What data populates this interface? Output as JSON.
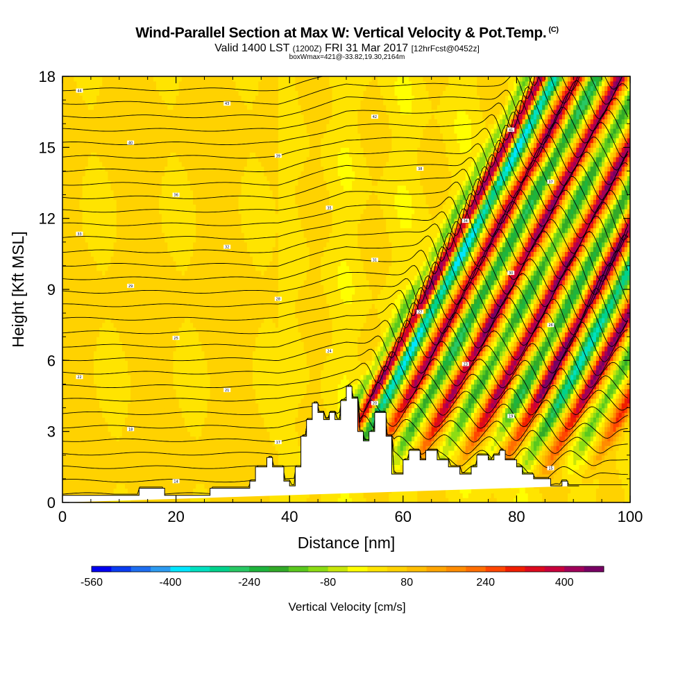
{
  "header": {
    "title": "Wind-Parallel Section at Max W: Vertical Velocity & Pot.Temp.",
    "copyright": "(C)",
    "valid_prefix": "Valid 1400 LST",
    "valid_utc": "(1200Z)",
    "valid_date": "FRI 31 Mar 2017",
    "forecast": "[12hrFcst@0452z]",
    "box_info": "boxWmax=421@-33.82,19.30,2164m"
  },
  "chart_data": {
    "type": "heatmap",
    "title": "Wind-Parallel Section at Max W: Vertical Velocity & Pot.Temp.",
    "xlabel": "Distance [nm]",
    "ylabel": "Height [Kft MSL]",
    "xlim": [
      0,
      100
    ],
    "ylim": [
      0,
      18
    ],
    "x_ticks": [
      0,
      20,
      40,
      60,
      80,
      100
    ],
    "y_ticks": [
      0,
      3,
      6,
      9,
      12,
      15,
      18
    ],
    "colorbar": {
      "title": "Vertical Velocity [cm/s]",
      "range": [
        -560,
        480
      ],
      "step": 40,
      "tick_values": [
        -560,
        -400,
        -240,
        -80,
        80,
        240,
        400
      ],
      "colors": [
        "#0000f0",
        "#0a3cf0",
        "#1e6ef0",
        "#2d9bf0",
        "#00e6ff",
        "#00e0c0",
        "#00d28c",
        "#28c864",
        "#1eb43c",
        "#32aa28",
        "#5ac81e",
        "#8cdc14",
        "#c8e60a",
        "#ffff00",
        "#ffe400",
        "#ffd200",
        "#ffbe00",
        "#ffa500",
        "#ff8c00",
        "#ff6e00",
        "#ff4600",
        "#f01e00",
        "#dc0a1e",
        "#c8003c",
        "#a0005a",
        "#780064"
      ]
    },
    "max_w_cms": 421,
    "max_w_location": "-33.82,19.30,2164m",
    "velocity_waves": [
      {
        "x_surface": 51.5,
        "amplitude": -180
      },
      {
        "x_surface": 53.5,
        "amplitude": 420
      },
      {
        "x_surface": 56.0,
        "amplitude": -400
      },
      {
        "x_surface": 60.0,
        "amplitude": 380
      },
      {
        "x_surface": 63.5,
        "amplitude": -260
      },
      {
        "x_surface": 67.5,
        "amplitude": 400
      },
      {
        "x_surface": 71.5,
        "amplitude": -220
      },
      {
        "x_surface": 75.5,
        "amplitude": 400
      },
      {
        "x_surface": 79.5,
        "amplitude": -240
      },
      {
        "x_surface": 83.0,
        "amplitude": 420
      },
      {
        "x_surface": 87.0,
        "amplitude": -360
      },
      {
        "x_surface": 91.0,
        "amplitude": 420
      },
      {
        "x_surface": 95.0,
        "amplitude": -200
      },
      {
        "x_surface": 99.0,
        "amplitude": 300
      }
    ],
    "terrain": {
      "x": [
        0,
        13.5,
        13.5,
        18,
        18,
        26,
        26,
        33,
        33,
        34,
        34,
        36,
        36,
        37,
        37,
        39,
        39,
        40,
        40,
        41,
        41,
        42,
        42,
        43,
        43,
        44,
        44,
        45,
        45,
        46,
        46,
        47,
        47,
        48,
        48,
        49,
        49,
        50,
        50,
        51,
        51,
        52,
        52,
        53,
        53,
        54,
        54,
        55,
        55,
        57,
        57,
        58,
        58,
        59,
        59,
        60,
        60,
        61,
        61,
        63,
        63,
        64,
        64,
        66,
        66,
        68,
        68,
        70,
        70,
        72,
        72,
        73,
        73,
        75,
        75,
        76,
        76,
        77,
        77,
        78,
        78,
        80,
        80,
        81,
        81,
        83,
        83,
        86,
        86,
        88,
        88,
        89,
        89,
        91,
        91,
        100
      ],
      "y": [
        0.3,
        0.3,
        0.6,
        0.6,
        0.3,
        0.3,
        0.6,
        0.6,
        0.9,
        0.9,
        1.5,
        1.5,
        1.9,
        1.9,
        1.5,
        1.5,
        0.9,
        0.9,
        0.7,
        0.7,
        1.5,
        1.5,
        2.8,
        2.8,
        3.5,
        3.5,
        4.2,
        4.2,
        3.8,
        3.8,
        3.5,
        3.5,
        3.8,
        3.8,
        3.5,
        3.5,
        4.3,
        4.3,
        4.9,
        4.9,
        4.4,
        4.4,
        3.0,
        3.0,
        2.6,
        2.6,
        3.0,
        3.0,
        3.8,
        3.8,
        2.8,
        2.8,
        1.2,
        1.2,
        1.2,
        1.2,
        1.8,
        1.8,
        2.2,
        2.2,
        1.8,
        1.8,
        2.2,
        2.2,
        1.8,
        1.8,
        1.5,
        1.5,
        1.2,
        1.2,
        1.5,
        1.5,
        2.0,
        2.0,
        1.8,
        1.8,
        2.0,
        2.0,
        2.2,
        2.2,
        1.8,
        1.8,
        1.5,
        1.5,
        1.2,
        1.2,
        1.0,
        1.0,
        0.7,
        0.7,
        0.9,
        0.9,
        0.7,
        0.7,
        0.7
      ]
    },
    "isentropes": {
      "count": 31,
      "label_values": [
        44,
        43,
        42,
        41,
        40,
        39,
        38,
        37,
        36,
        35,
        34,
        33,
        32,
        31,
        30,
        29,
        28,
        27,
        26,
        25,
        24,
        23,
        22,
        21,
        20,
        19,
        18,
        17,
        16,
        15,
        14
      ]
    }
  }
}
